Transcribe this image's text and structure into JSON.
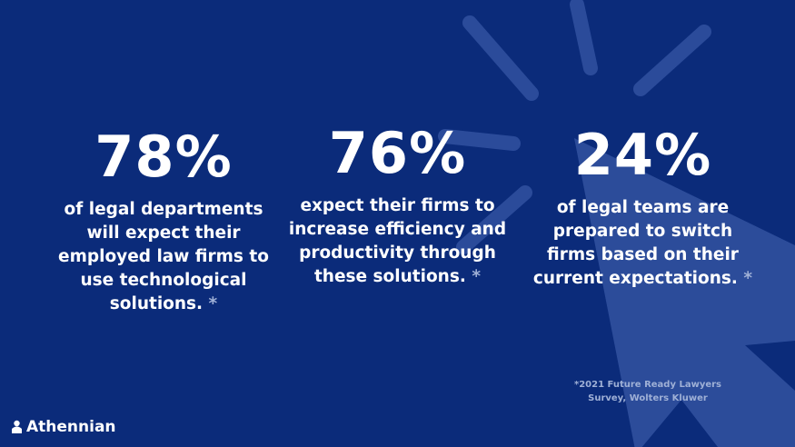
{
  "stats": [
    {
      "number": "78%",
      "text": "of legal departments will expect their employed law firms to use technological solutions.",
      "asterisk": "*"
    },
    {
      "number": "76%",
      "text": "expect their firms to increase efficiency and productivity through these solutions.",
      "asterisk": "*"
    },
    {
      "number": "24%",
      "text": "of legal teams are prepared to switch firms based on their current expectations.",
      "asterisk": "*"
    }
  ],
  "footnote": {
    "line1": "*2021 Future Ready Lawyers",
    "line2": "Survey, Wolters Kluwer"
  },
  "logo": {
    "text": "Athennian",
    "icon": "athennian-logo-icon"
  },
  "colors": {
    "background": "#0b2b7a",
    "decor": "#3a5aa8",
    "text": "#ffffff",
    "muted": "#9fb0d6"
  }
}
